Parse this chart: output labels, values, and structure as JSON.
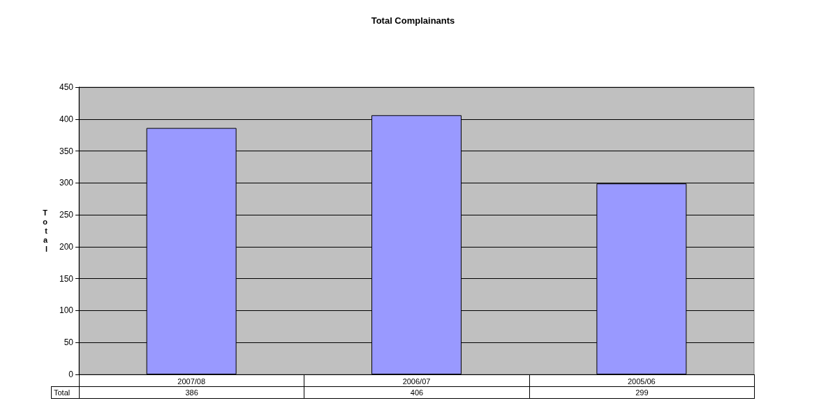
{
  "chart_data": {
    "type": "bar",
    "title": "Total Complainants",
    "ylabel": "Total",
    "categories": [
      "2007/08",
      "2006/07",
      "2005/06"
    ],
    "series": [
      {
        "name": "Total",
        "color": "#9999ff",
        "values": [
          386,
          406,
          299
        ]
      }
    ],
    "ylim": [
      0,
      450
    ],
    "yticks": [
      0,
      50,
      100,
      150,
      200,
      250,
      300,
      350,
      400,
      450
    ],
    "grid": "y",
    "data_labels": true,
    "legend": false
  }
}
